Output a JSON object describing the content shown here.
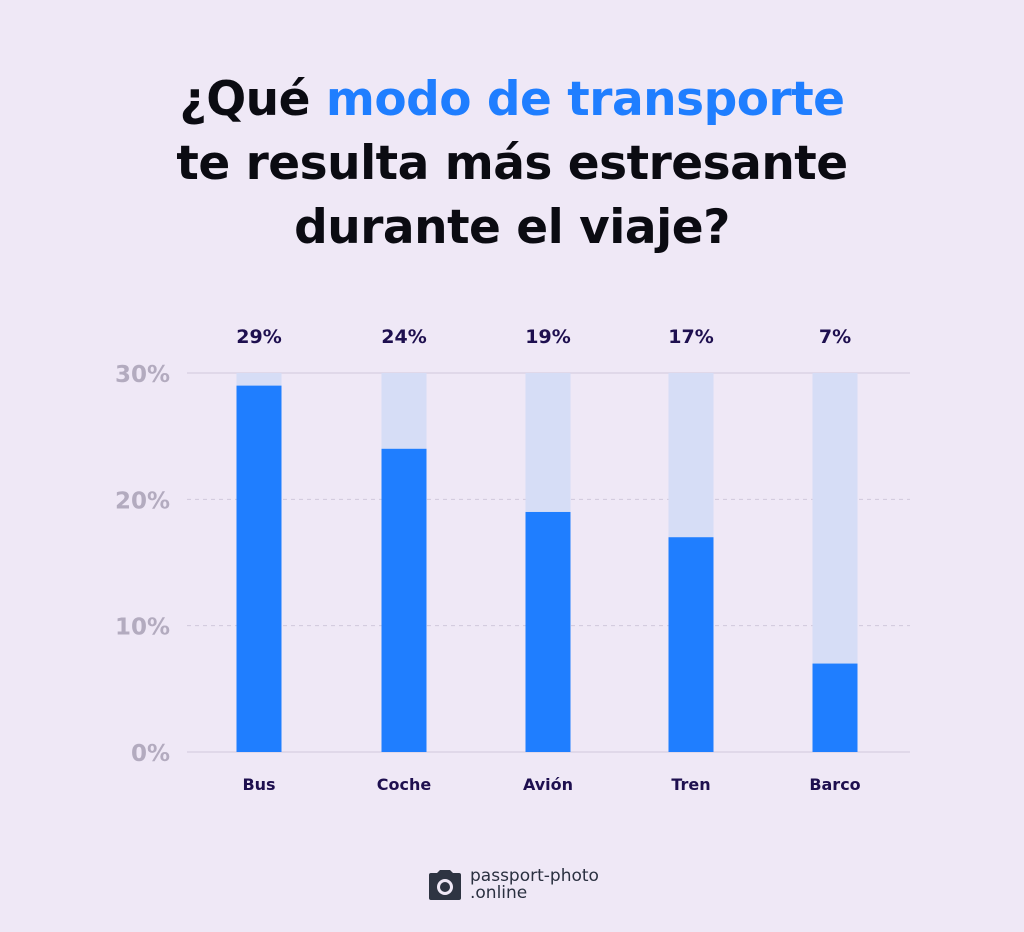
{
  "title": {
    "line1_pre": "¿Qué ",
    "line1_highlight": "modo de transporte",
    "line2": "te resulta más estresante",
    "line3": "durante el viaje?"
  },
  "chart_data": {
    "type": "bar",
    "categories": [
      "Bus",
      "Coche",
      "Avión",
      "Tren",
      "Barco"
    ],
    "values": [
      29,
      24,
      19,
      17,
      7
    ],
    "value_labels": [
      "29%",
      "24%",
      "19%",
      "17%",
      "7%"
    ],
    "ylim": [
      0,
      30
    ],
    "yticks": [
      0,
      10,
      20,
      30
    ],
    "ytick_labels": [
      "0%",
      "10%",
      "20%",
      "30%"
    ],
    "grid": true,
    "colors": {
      "bar": "#1f7eff",
      "track": "#d6ddf6",
      "value_label": "#1e0f4f",
      "category_label": "#1e0f4f",
      "tick_label": "#b3abbf",
      "grid": "#d0c8dc"
    }
  },
  "logo": {
    "line1": "passport-photo",
    "line2": ".online",
    "icon": "camera-icon"
  }
}
